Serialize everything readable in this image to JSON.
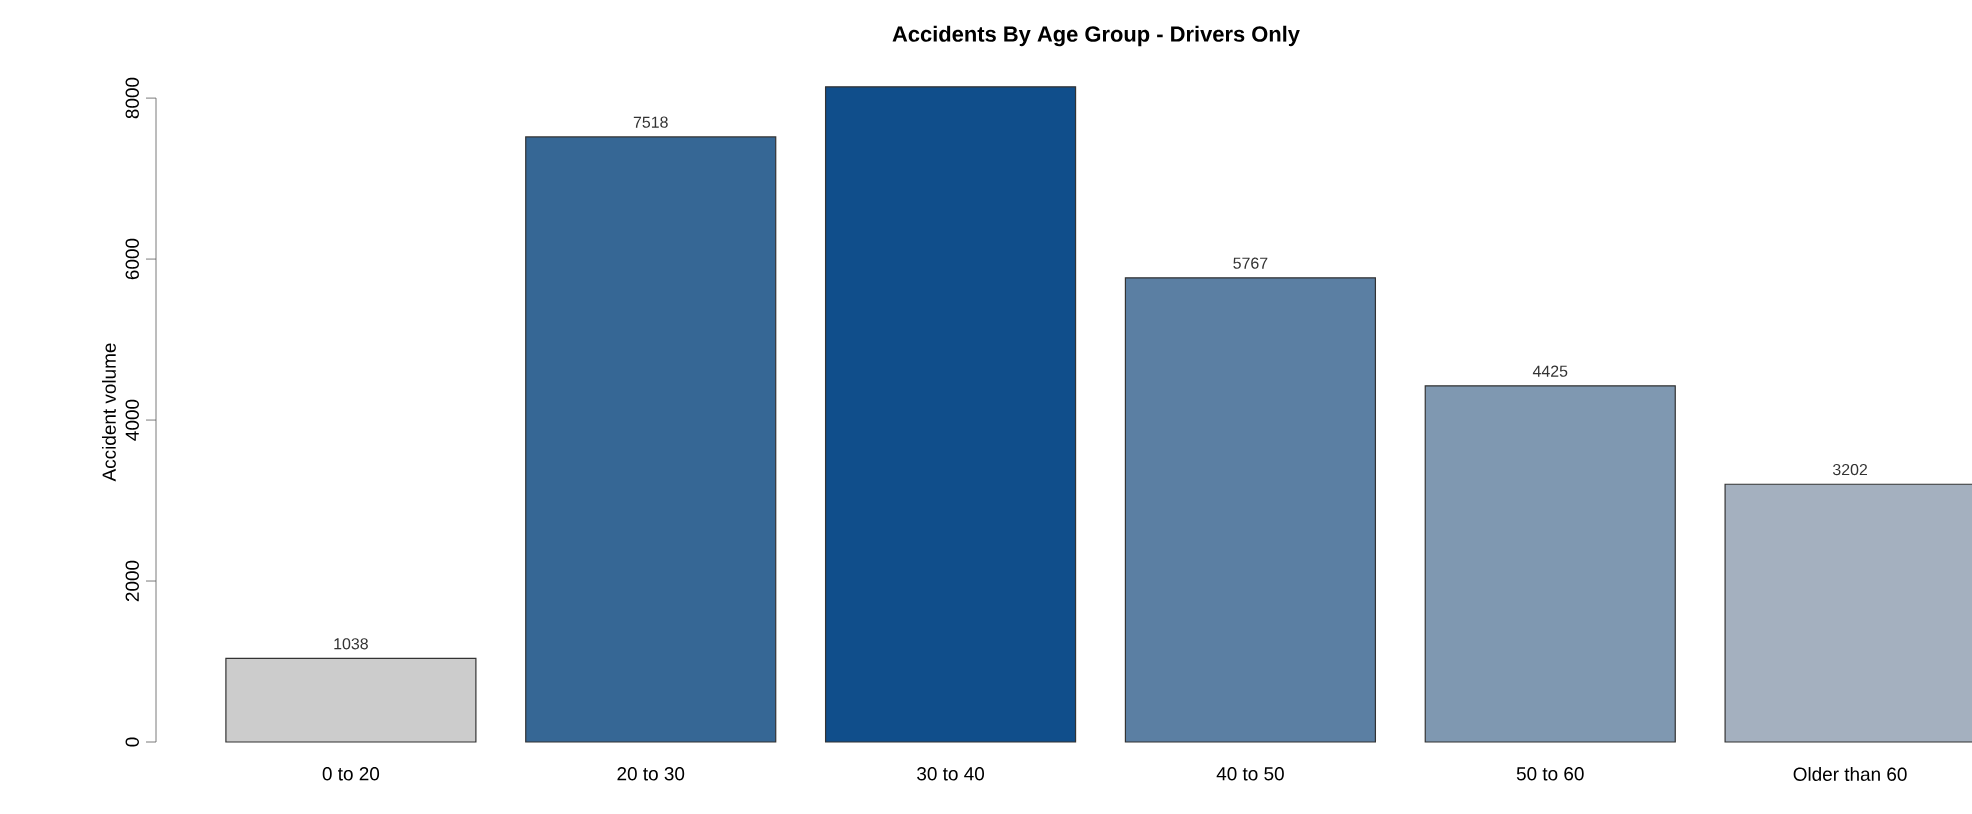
{
  "chart_data": {
    "type": "bar",
    "title": "Accidents By Age Group - Drivers Only",
    "ylabel": "Accident volume",
    "categories": [
      "0 to 20",
      "20 to 30",
      "30 to 40",
      "40 to 50",
      "50 to 60",
      "Older than 60"
    ],
    "values": [
      1038,
      7518,
      8140,
      5767,
      4425,
      3202
    ],
    "value_labels": [
      "1038",
      "7518",
      null,
      "5767",
      "4425",
      "3202"
    ],
    "colors": [
      "#cccccc",
      "#366795",
      "#104e8b",
      "#5b7fa3",
      "#7f98b1",
      "#a4b0bf"
    ],
    "ylim": [
      0,
      8200
    ],
    "yticks": [
      0,
      2000,
      4000,
      6000,
      8000
    ],
    "grid": false
  }
}
